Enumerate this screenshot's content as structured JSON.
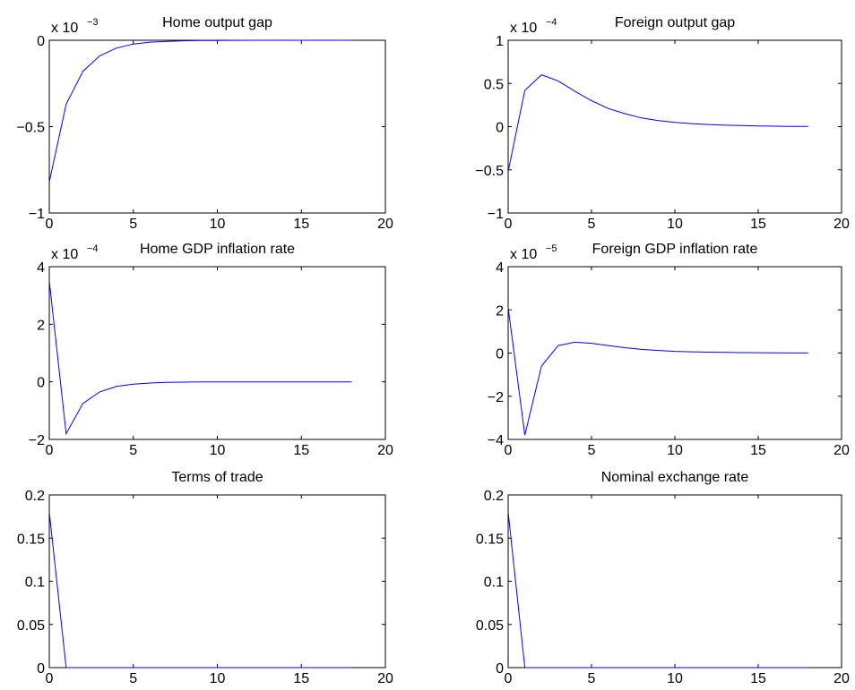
{
  "chart_data": [
    {
      "type": "line",
      "title": "Home output gap",
      "exponent_label": {
        "base": "x 10",
        "power": "−3"
      },
      "scale": 0.001,
      "xlim": [
        0,
        20
      ],
      "ylim": [
        -1,
        0
      ],
      "xticks": [
        0,
        5,
        10,
        15,
        20
      ],
      "xtick_labels": [
        "0",
        "5",
        "10",
        "15",
        "20"
      ],
      "yticks": [
        -1,
        -0.5,
        0
      ],
      "ytick_labels": [
        "−1",
        "−0.5",
        "0"
      ],
      "color": "#0000ff",
      "series": [
        {
          "x": [
            0,
            1,
            2,
            3,
            4,
            5,
            6,
            7,
            8,
            9,
            10,
            11,
            12,
            13,
            14,
            15,
            16,
            17,
            18
          ],
          "y": [
            -0.82,
            -0.37,
            -0.18,
            -0.09,
            -0.045,
            -0.022,
            -0.011,
            -0.006,
            -0.003,
            -0.0015,
            -0.0008,
            -0.0004,
            -0.0002,
            -0.0001,
            0,
            0,
            0,
            0,
            0
          ]
        }
      ]
    },
    {
      "type": "line",
      "title": "Foreign output gap",
      "exponent_label": {
        "base": "x 10",
        "power": "−4"
      },
      "scale": 0.0001,
      "xlim": [
        0,
        20
      ],
      "ylim": [
        -1,
        1
      ],
      "xticks": [
        0,
        5,
        10,
        15,
        20
      ],
      "xtick_labels": [
        "0",
        "5",
        "10",
        "15",
        "20"
      ],
      "yticks": [
        -1,
        -0.5,
        0,
        0.5,
        1
      ],
      "ytick_labels": [
        "−1",
        "−0.5",
        "0",
        "0.5",
        "1"
      ],
      "color": "#0000ff",
      "series": [
        {
          "x": [
            0,
            1,
            2,
            3,
            4,
            5,
            6,
            7,
            8,
            9,
            10,
            11,
            12,
            13,
            14,
            15,
            16,
            17,
            18
          ],
          "y": [
            -0.52,
            0.42,
            0.6,
            0.53,
            0.41,
            0.3,
            0.21,
            0.15,
            0.1,
            0.07,
            0.05,
            0.035,
            0.025,
            0.017,
            0.012,
            0.008,
            0.005,
            0.003,
            0.002
          ]
        }
      ]
    },
    {
      "type": "line",
      "title": "Home GDP inflation rate",
      "exponent_label": {
        "base": "x 10",
        "power": "−4"
      },
      "scale": 0.0001,
      "xlim": [
        0,
        20
      ],
      "ylim": [
        -2,
        4
      ],
      "xticks": [
        0,
        5,
        10,
        15,
        20
      ],
      "xtick_labels": [
        "0",
        "5",
        "10",
        "15",
        "20"
      ],
      "yticks": [
        -2,
        0,
        2,
        4
      ],
      "ytick_labels": [
        "−2",
        "0",
        "2",
        "4"
      ],
      "color": "#0000ff",
      "series": [
        {
          "x": [
            0,
            1,
            2,
            3,
            4,
            5,
            6,
            7,
            8,
            9,
            10,
            11,
            12,
            13,
            14,
            15,
            16,
            17,
            18
          ],
          "y": [
            3.5,
            -1.8,
            -0.75,
            -0.35,
            -0.16,
            -0.08,
            -0.04,
            -0.02,
            -0.01,
            -0.005,
            -0.003,
            -0.002,
            -0.001,
            0,
            0,
            0,
            0,
            0,
            0
          ]
        }
      ]
    },
    {
      "type": "line",
      "title": "Foreign GDP inflation rate",
      "exponent_label": {
        "base": "x 10",
        "power": "−5"
      },
      "scale": 1e-05,
      "xlim": [
        0,
        20
      ],
      "ylim": [
        -4,
        4
      ],
      "xticks": [
        0,
        5,
        10,
        15,
        20
      ],
      "xtick_labels": [
        "0",
        "5",
        "10",
        "15",
        "20"
      ],
      "yticks": [
        -4,
        -2,
        0,
        2,
        4
      ],
      "ytick_labels": [
        "−4",
        "−2",
        "0",
        "2",
        "4"
      ],
      "color": "#0000ff",
      "series": [
        {
          "x": [
            0,
            1,
            2,
            3,
            4,
            5,
            6,
            7,
            8,
            9,
            10,
            11,
            12,
            13,
            14,
            15,
            16,
            17,
            18
          ],
          "y": [
            2.1,
            -3.8,
            -0.6,
            0.35,
            0.5,
            0.45,
            0.35,
            0.25,
            0.17,
            0.12,
            0.08,
            0.06,
            0.04,
            0.03,
            0.02,
            0.015,
            0.01,
            0.005,
            0.003
          ]
        }
      ]
    },
    {
      "type": "line",
      "title": "Terms of trade",
      "xlim": [
        0,
        20
      ],
      "ylim": [
        0,
        0.2
      ],
      "xticks": [
        0,
        5,
        10,
        15,
        20
      ],
      "xtick_labels": [
        "0",
        "5",
        "10",
        "15",
        "20"
      ],
      "yticks": [
        0,
        0.05,
        0.1,
        0.15,
        0.2
      ],
      "ytick_labels": [
        "0",
        "0.05",
        "0.1",
        "0.15",
        "0.2"
      ],
      "color": "#0000ff",
      "series": [
        {
          "x": [
            0,
            1,
            2,
            3,
            4,
            5,
            6,
            7,
            8,
            9,
            10,
            11,
            12,
            13,
            14,
            15,
            16,
            17,
            18
          ],
          "y": [
            0.18,
            0,
            0,
            0,
            0,
            0,
            0,
            0,
            0,
            0,
            0,
            0,
            0,
            0,
            0,
            0,
            0,
            0,
            0
          ]
        }
      ]
    },
    {
      "type": "line",
      "title": "Nominal exchange rate",
      "xlim": [
        0,
        20
      ],
      "ylim": [
        0,
        0.2
      ],
      "xticks": [
        0,
        5,
        10,
        15,
        20
      ],
      "xtick_labels": [
        "0",
        "5",
        "10",
        "15",
        "20"
      ],
      "yticks": [
        0,
        0.05,
        0.1,
        0.15,
        0.2
      ],
      "ytick_labels": [
        "0",
        "0.05",
        "0.1",
        "0.15",
        "0.2"
      ],
      "color": "#0000ff",
      "series": [
        {
          "x": [
            0,
            1,
            2,
            3,
            4,
            5,
            6,
            7,
            8,
            9,
            10,
            11,
            12,
            13,
            14,
            15,
            16,
            17,
            18
          ],
          "y": [
            0.18,
            0,
            0,
            0,
            0,
            0,
            0,
            0,
            0,
            0,
            0,
            0,
            0,
            0,
            0,
            0,
            0,
            0,
            0
          ]
        }
      ]
    }
  ]
}
